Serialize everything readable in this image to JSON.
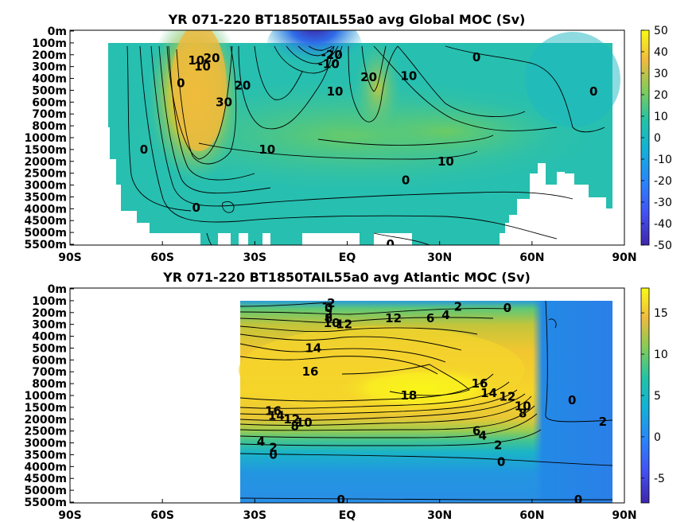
{
  "chart_data": [
    {
      "type": "heatmap",
      "title": "YR 071-220 BT1850TAIL55a0 avg  Global MOC (Sv)",
      "x_ticks": [
        "90S",
        "60S",
        "30S",
        "EQ",
        "30N",
        "60N",
        "90N"
      ],
      "y_ticks": [
        "0m",
        "100m",
        "200m",
        "300m",
        "400m",
        "500m",
        "600m",
        "700m",
        "800m",
        "1000m",
        "1500m",
        "2000m",
        "2500m",
        "3000m",
        "3500m",
        "4000m",
        "4500m",
        "5000m",
        "5500m"
      ],
      "colorbar": {
        "ticks": [
          "50",
          "40",
          "30",
          "20",
          "10",
          "0",
          "-10",
          "-20",
          "-30",
          "-40",
          "-50"
        ],
        "range": [
          -50,
          50
        ]
      },
      "contour_labels": [
        {
          "text": "10",
          "lat": -49,
          "depth_index": 2.5
        },
        {
          "text": "10",
          "lat": -47,
          "depth_index": 3.0
        },
        {
          "text": "20",
          "lat": -44,
          "depth_index": 2.3
        },
        {
          "text": "0",
          "lat": -54,
          "depth_index": 4.4
        },
        {
          "text": "30",
          "lat": -40,
          "depth_index": 6.0
        },
        {
          "text": "20",
          "lat": -34,
          "depth_index": 4.6
        },
        {
          "text": "-20",
          "lat": -5,
          "depth_index": 2.0
        },
        {
          "text": "-10",
          "lat": -6,
          "depth_index": 2.8
        },
        {
          "text": "10",
          "lat": -4,
          "depth_index": 5.1
        },
        {
          "text": "20",
          "lat": 7,
          "depth_index": 3.9
        },
        {
          "text": "10",
          "lat": 20,
          "depth_index": 3.8
        },
        {
          "text": "0",
          "lat": 42,
          "depth_index": 2.2
        },
        {
          "text": "0",
          "lat": 80,
          "depth_index": 5.1
        },
        {
          "text": "0",
          "lat": -66,
          "depth_index": 10.0
        },
        {
          "text": "10",
          "lat": -26,
          "depth_index": 10.0
        },
        {
          "text": "10",
          "lat": 32,
          "depth_index": 11.0
        },
        {
          "text": "0",
          "lat": 19,
          "depth_index": 12.6
        },
        {
          "text": "0",
          "lat": -49,
          "depth_index": 14.9
        },
        {
          "text": "0",
          "lat": 14,
          "depth_index": 18.0
        }
      ]
    },
    {
      "type": "heatmap",
      "title": "YR 071-220 BT1850TAIL55a0 avg  Atlantic MOC (Sv)",
      "x_ticks": [
        "90S",
        "60S",
        "30S",
        "EQ",
        "30N",
        "60N",
        "90N"
      ],
      "y_ticks": [
        "0m",
        "100m",
        "200m",
        "300m",
        "400m",
        "500m",
        "600m",
        "700m",
        "800m",
        "1000m",
        "1500m",
        "2000m",
        "2500m",
        "3000m",
        "3500m",
        "4000m",
        "4500m",
        "5000m",
        "5500m"
      ],
      "colorbar": {
        "ticks": [
          "15",
          "10",
          "5",
          "0",
          "-5"
        ],
        "range": [
          -8,
          18
        ]
      },
      "contour_labels": [
        {
          "text": "-2",
          "lat": -6,
          "depth_index": 1.2
        },
        {
          "text": "0",
          "lat": -6,
          "depth_index": 1.6
        },
        {
          "text": "2",
          "lat": -6,
          "depth_index": 2.1
        },
        {
          "text": "8",
          "lat": -6,
          "depth_index": 2.5
        },
        {
          "text": "10",
          "lat": -5,
          "depth_index": 2.9
        },
        {
          "text": "12",
          "lat": -1,
          "depth_index": 3.0
        },
        {
          "text": "12",
          "lat": 15,
          "depth_index": 2.5
        },
        {
          "text": "6",
          "lat": 27,
          "depth_index": 2.5
        },
        {
          "text": "4",
          "lat": 32,
          "depth_index": 2.2
        },
        {
          "text": "2",
          "lat": 36,
          "depth_index": 1.5
        },
        {
          "text": "0",
          "lat": 52,
          "depth_index": 1.6
        },
        {
          "text": "14",
          "lat": -11,
          "depth_index": 5.0
        },
        {
          "text": "16",
          "lat": -12,
          "depth_index": 7.0
        },
        {
          "text": "18",
          "lat": 20,
          "depth_index": 9.0
        },
        {
          "text": "16",
          "lat": 43,
          "depth_index": 8.0
        },
        {
          "text": "14",
          "lat": 46,
          "depth_index": 8.8
        },
        {
          "text": "12",
          "lat": 52,
          "depth_index": 9.1
        },
        {
          "text": "10",
          "lat": 57,
          "depth_index": 9.9
        },
        {
          "text": "8",
          "lat": 57,
          "depth_index": 10.5
        },
        {
          "text": "16",
          "lat": -24,
          "depth_index": 10.3
        },
        {
          "text": "14",
          "lat": -23,
          "depth_index": 10.7
        },
        {
          "text": "12",
          "lat": -18,
          "depth_index": 11.0
        },
        {
          "text": "10",
          "lat": -14,
          "depth_index": 11.3
        },
        {
          "text": "8",
          "lat": -17,
          "depth_index": 11.6
        },
        {
          "text": "4",
          "lat": -28,
          "depth_index": 12.9
        },
        {
          "text": "2",
          "lat": -24,
          "depth_index": 13.4
        },
        {
          "text": "0",
          "lat": -24,
          "depth_index": 14.0
        },
        {
          "text": "6",
          "lat": 42,
          "depth_index": 12.0
        },
        {
          "text": "4",
          "lat": 44,
          "depth_index": 12.4
        },
        {
          "text": "2",
          "lat": 49,
          "depth_index": 13.2
        },
        {
          "text": "0",
          "lat": 50,
          "depth_index": 14.6
        },
        {
          "text": "0",
          "lat": 73,
          "depth_index": 9.4
        },
        {
          "text": "2",
          "lat": 83,
          "depth_index": 11.2
        },
        {
          "text": "0",
          "lat": -2,
          "depth_index": 17.8
        },
        {
          "text": "0",
          "lat": 75,
          "depth_index": 17.8
        }
      ]
    }
  ]
}
